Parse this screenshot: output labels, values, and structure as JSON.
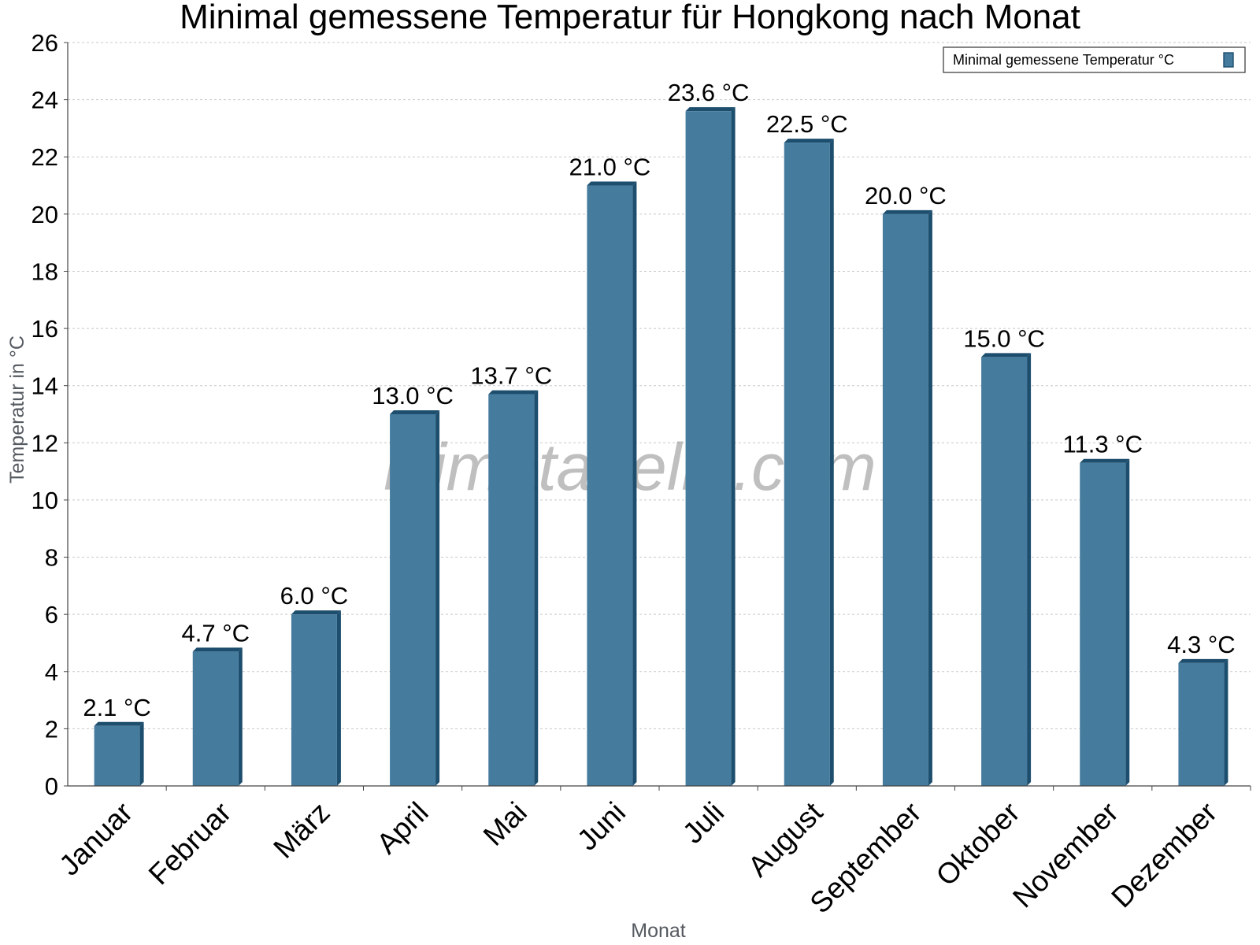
{
  "chart_data": {
    "type": "bar",
    "title": "Minimal gemessene Temperatur für Hongkong nach Monat",
    "xlabel": "Monat",
    "ylabel": "Temperatur in °C",
    "ylim": [
      0,
      26
    ],
    "yticks": [
      0,
      2,
      4,
      6,
      8,
      10,
      12,
      14,
      16,
      18,
      20,
      22,
      24,
      26
    ],
    "grid": true,
    "legend_position": "top-right",
    "categories": [
      "Januar",
      "Februar",
      "März",
      "April",
      "Mai",
      "Juni",
      "Juli",
      "August",
      "September",
      "Oktober",
      "November",
      "Dezember"
    ],
    "series": [
      {
        "name": "Minimal gemessene Temperatur °C",
        "values": [
          2.1,
          4.7,
          6.0,
          13.0,
          13.7,
          21.0,
          23.6,
          22.5,
          20.0,
          15.0,
          11.3,
          4.3
        ],
        "labels": [
          "2.1 °C",
          "4.7 °C",
          "6.0 °C",
          "13.0 °C",
          "13.7 °C",
          "21.0 °C",
          "23.6 °C",
          "22.5 °C",
          "20.0 °C",
          "15.0 °C",
          "11.3 °C",
          "4.3 °C"
        ],
        "color": "#457b9d",
        "edge_color": "#1d4e6e"
      }
    ],
    "watermark": "klimatabelle.com"
  }
}
